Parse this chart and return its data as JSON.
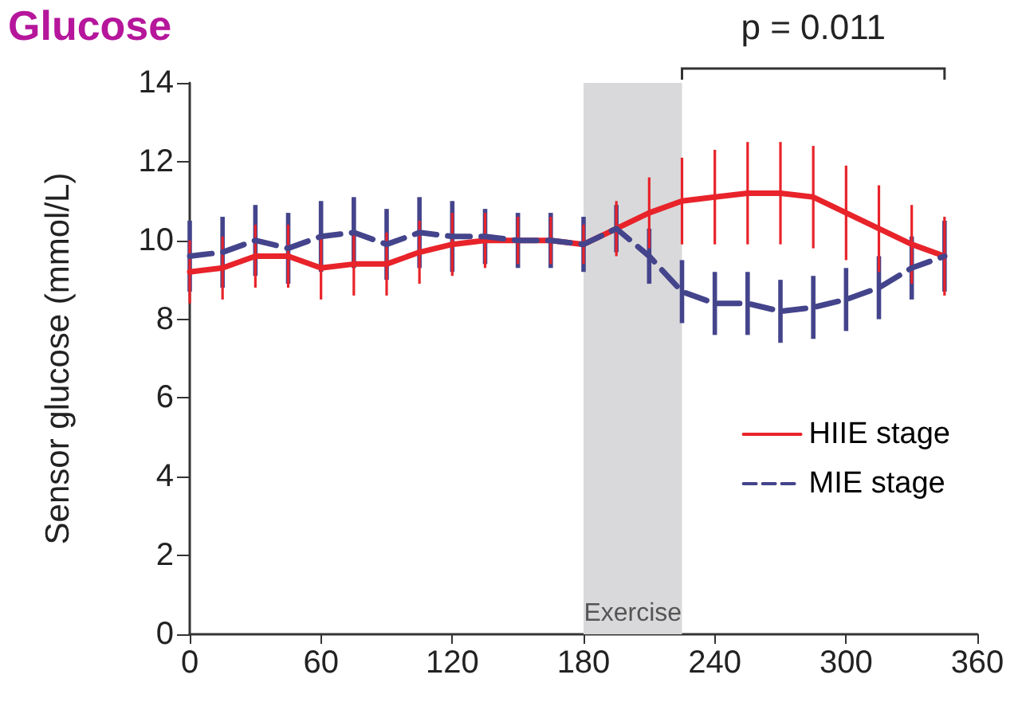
{
  "chart_data": {
    "type": "line",
    "title": "Glucose",
    "ylabel": "Sensor glucose (mmol/L)",
    "x": [
      0,
      15,
      30,
      45,
      60,
      75,
      90,
      105,
      120,
      135,
      150,
      165,
      180,
      195,
      210,
      225,
      240,
      255,
      270,
      285,
      300,
      315,
      330,
      345
    ],
    "series": [
      {
        "name": "HIIE stage",
        "color": "#e8232a",
        "line_style": "solid",
        "values": [
          9.2,
          9.3,
          9.6,
          9.6,
          9.3,
          9.4,
          9.4,
          9.7,
          9.9,
          10.0,
          10.0,
          10.0,
          9.9,
          10.3,
          10.7,
          11.0,
          11.1,
          11.2,
          11.2,
          11.1,
          10.7,
          10.3,
          9.9,
          9.6
        ],
        "errors": [
          0.8,
          0.8,
          0.8,
          0.8,
          0.8,
          0.8,
          0.8,
          0.8,
          0.8,
          0.7,
          0.6,
          0.6,
          0.5,
          0.7,
          0.9,
          1.1,
          1.2,
          1.3,
          1.3,
          1.3,
          1.2,
          1.1,
          1.0,
          1.0
        ]
      },
      {
        "name": "MIE stage",
        "color": "#44448c",
        "line_style": "dashed",
        "values": [
          9.6,
          9.7,
          10.0,
          9.8,
          10.1,
          10.2,
          9.9,
          10.2,
          10.1,
          10.1,
          10.0,
          10.0,
          9.9,
          10.3,
          9.6,
          8.7,
          8.4,
          8.4,
          8.2,
          8.3,
          8.5,
          8.8,
          9.3,
          9.6
        ],
        "errors": [
          0.9,
          0.9,
          0.9,
          0.9,
          0.9,
          0.9,
          0.9,
          0.9,
          0.9,
          0.7,
          0.7,
          0.7,
          0.7,
          0.6,
          0.7,
          0.8,
          0.8,
          0.8,
          0.8,
          0.8,
          0.8,
          0.8,
          0.8,
          0.9
        ]
      }
    ],
    "xlim": [
      0,
      360
    ],
    "xticks": [
      0,
      60,
      120,
      180,
      240,
      300,
      360
    ],
    "ylim": [
      0,
      14
    ],
    "yticks": [
      0,
      2,
      4,
      6,
      8,
      10,
      12,
      14
    ],
    "bands": [
      {
        "axis": "x",
        "from": 180,
        "to": 225,
        "label": "Exercise",
        "color": "#d9d9db"
      }
    ],
    "annotations": [
      "p = 0.011"
    ],
    "grid": false,
    "legend": "right",
    "marker": "none"
  }
}
